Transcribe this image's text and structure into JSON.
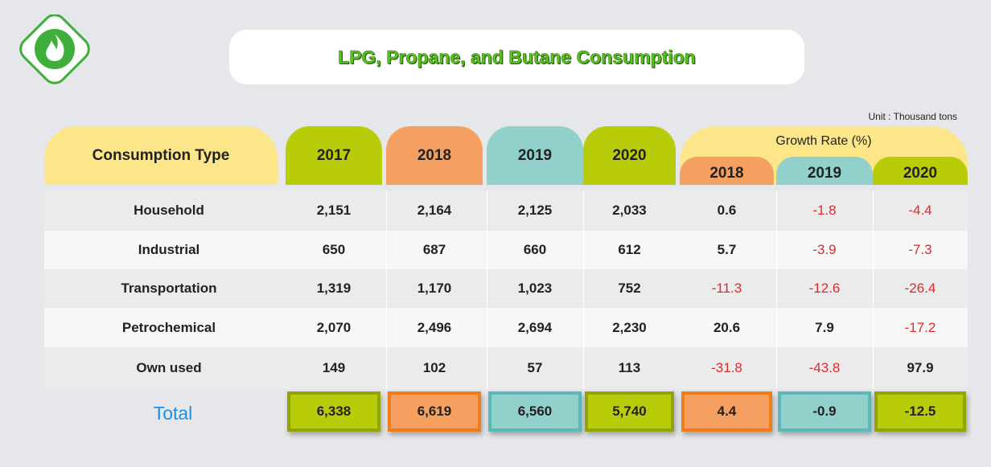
{
  "title": "LPG, Propane, and Butane Consumption",
  "unit": "Unit :  Thousand tons",
  "header": {
    "label": "Consumption Type",
    "years": [
      "2017",
      "2018",
      "2019",
      "2020"
    ],
    "growth": {
      "label": "Growth Rate (%)",
      "years": [
        "2018",
        "2019",
        "2020"
      ]
    }
  },
  "table": {
    "rows": [
      {
        "label": "Household",
        "values": [
          "2,151",
          "2,164",
          "2,125",
          "2,033",
          "0.6",
          "-1.8",
          "-4.4"
        ]
      },
      {
        "label": "Industrial",
        "values": [
          "650",
          "687",
          "660",
          "612",
          "5.7",
          "-3.9",
          "-7.3"
        ]
      },
      {
        "label": "Transportation",
        "values": [
          "1,319",
          "1,170",
          "1,023",
          "752",
          "-11.3",
          "-12.6",
          "-26.4"
        ]
      },
      {
        "label": "Petrochemical",
        "values": [
          "2,070",
          "2,496",
          "2,694",
          "2,230",
          "20.6",
          "7.9",
          "-17.2"
        ]
      },
      {
        "label": "Own used",
        "values": [
          "149",
          "102",
          "57",
          "113",
          "-31.8",
          "-43.8",
          "97.9"
        ]
      }
    ],
    "total": {
      "label": "Total",
      "values": [
        "6,338",
        "6,619",
        "6,560",
        "5,740",
        "4.4",
        "-0.9",
        "-12.5"
      ]
    }
  }
}
